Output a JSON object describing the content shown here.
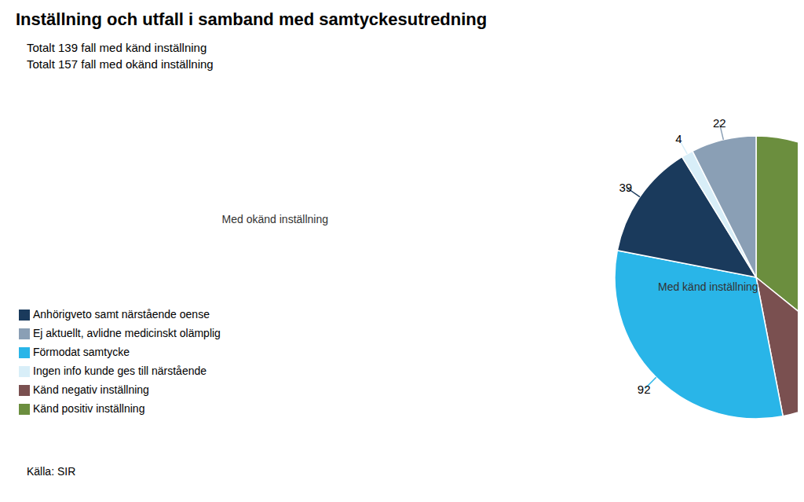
{
  "chart_data": {
    "type": "pie",
    "title": "Inställning och utfall i samband med samtyckesutredning",
    "subtitle": [
      "Totalt 139 fall med känd inställning",
      "Totalt 157 fall med okänd inställning"
    ],
    "categories": [
      "Känd positiv inställning",
      "Känd negativ inställning",
      "Förmodat samtycke",
      "Anhörigveto samt närstående oense",
      "Ingen info kunde ges till närstående",
      "Ej aktuellt, avlidne medicinskt olämplig"
    ],
    "values": [
      106,
      33,
      92,
      39,
      4,
      22
    ],
    "colors": [
      "#6b8e3e",
      "#7a5050",
      "#29b5e8",
      "#1a3a5c",
      "#d8eef8",
      "#8a9fb5"
    ],
    "data_labels": true,
    "legend": "left",
    "annotations": [
      "Med känd inställning",
      "Med okänd inställning",
      "Källa: SIR"
    ]
  }
}
